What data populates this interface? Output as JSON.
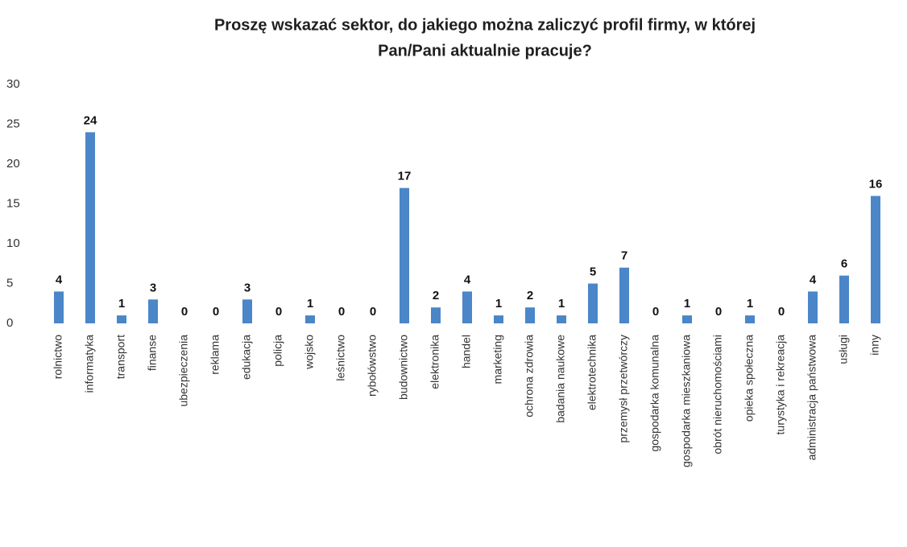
{
  "chart_data": {
    "type": "bar",
    "title": [
      "Proszę wskazać sektor, do jakiego można zaliczyć profil firmy, w której",
      "Pan/Pani aktualnie pracuje?"
    ],
    "categories": [
      "rolnictwo",
      "informatyka",
      "transport",
      "finanse",
      "ubezpieczenia",
      "reklama",
      "edukacja",
      "policja",
      "wojsko",
      "leśnictwo",
      "rybołówstwo",
      "budownictwo",
      "elektronika",
      "handel",
      "marketing",
      "ochrona zdrowia",
      "badania naukowe",
      "elektrotechnika",
      "przemysł przetwórczy",
      "gospodarka komunalna",
      "gospodarka mieszkaniowa",
      "obrót nieruchomościami",
      "opieka społeczna",
      "turystyka i rekreacja",
      "administracja państwowa",
      "usługi",
      "inny"
    ],
    "values": [
      4,
      24,
      1,
      3,
      0,
      0,
      3,
      0,
      1,
      0,
      0,
      17,
      2,
      4,
      1,
      2,
      1,
      5,
      7,
      0,
      1,
      0,
      1,
      0,
      4,
      6,
      16
    ],
    "color": "#4a86c8",
    "ylim": [
      0,
      30
    ],
    "yticks": [
      0,
      5,
      10,
      15,
      20,
      25,
      30
    ],
    "grid": false
  }
}
